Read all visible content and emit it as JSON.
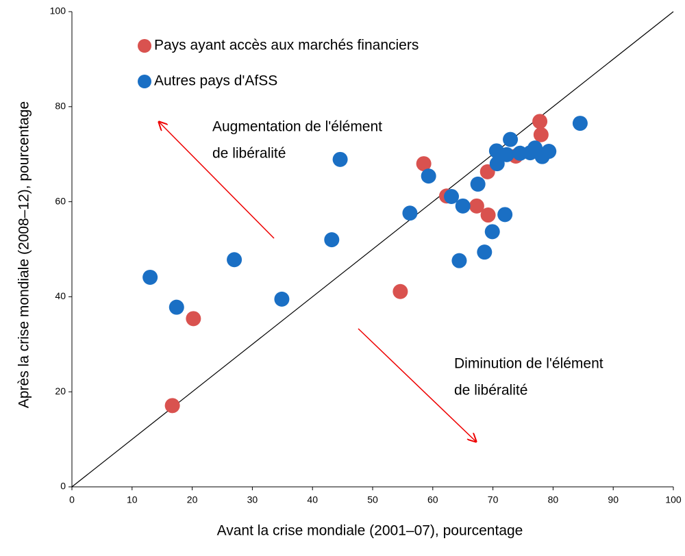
{
  "chart_data": {
    "type": "scatter",
    "xlabel": "Avant la crise mondiale (2001–07), pourcentage",
    "ylabel": "Après la crise mondiale (2008–12), pourcentage",
    "annotations": [
      [
        "Augmentation de l'élément",
        "de libéralité"
      ],
      [
        "Diminution de l'élément",
        "de libéralité"
      ]
    ],
    "xlim": [
      0,
      100
    ],
    "xticks": [
      0,
      10,
      20,
      30,
      40,
      50,
      60,
      70,
      80,
      90,
      100
    ],
    "ylim": [
      0,
      100
    ],
    "yticks": [
      0,
      20,
      40,
      60,
      80,
      100
    ],
    "legend": "upper left",
    "series": [
      {
        "name": "Pays ayant accès aux marchés financiers",
        "color": "#d9524f",
        "x": [
          16.7,
          20.2,
          54.6,
          58.5,
          62.3,
          67.3,
          69.1,
          69.2,
          73.8,
          77.8,
          78.0
        ],
        "values": [
          17.1,
          35.4,
          41.1,
          68.0,
          61.2,
          59.1,
          66.3,
          57.2,
          69.6,
          76.9,
          74.1
        ]
      },
      {
        "name": "Autres pays d'AfSS",
        "color": "#1a6fc4",
        "x": [
          13.0,
          17.4,
          27.0,
          34.9,
          43.2,
          44.6,
          56.2,
          59.3,
          63.1,
          65.0,
          64.4,
          67.5,
          68.6,
          69.9,
          70.6,
          70.7,
          72.0,
          72.3,
          72.9,
          74.5,
          76.2,
          77.0,
          78.2,
          79.3,
          84.5
        ],
        "values": [
          44.1,
          37.8,
          47.8,
          39.5,
          52.0,
          68.9,
          57.6,
          65.4,
          61.1,
          59.1,
          47.6,
          63.7,
          49.4,
          53.7,
          70.7,
          68.0,
          57.3,
          69.9,
          73.1,
          70.2,
          70.3,
          71.3,
          69.5,
          70.6,
          76.5
        ]
      }
    ]
  }
}
